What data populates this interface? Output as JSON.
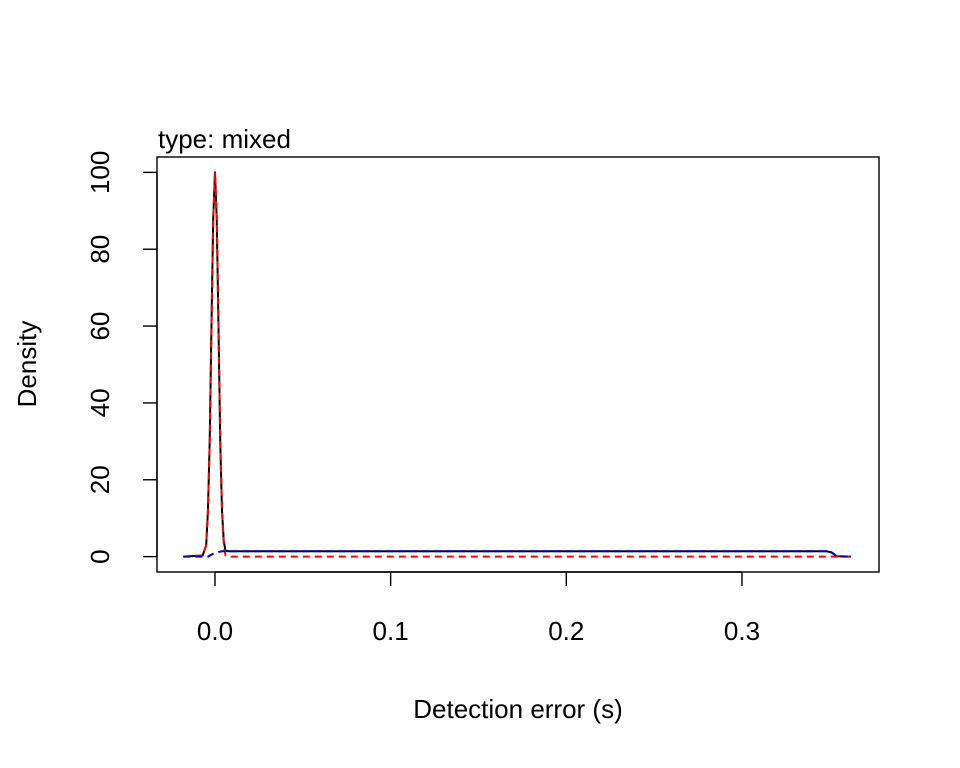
{
  "chart_data": {
    "type": "line",
    "title": "type: mixed",
    "xlabel": "Detection error (s)",
    "ylabel": "Density",
    "xlim": [
      -0.033,
      0.378
    ],
    "ylim": [
      -4,
      104
    ],
    "x_ticks": [
      0.0,
      0.1,
      0.2,
      0.3
    ],
    "x_tick_labels": [
      "0.0",
      "0.1",
      "0.2",
      "0.3"
    ],
    "y_ticks": [
      0,
      20,
      40,
      60,
      80,
      100
    ],
    "y_tick_labels": [
      "0",
      "20",
      "40",
      "60",
      "80",
      "100"
    ],
    "grid": false,
    "legend": false,
    "series": [
      {
        "color": "#000000",
        "line_style": "solid",
        "x": [
          -0.018,
          -0.007,
          -0.005,
          -0.004,
          -0.003,
          -0.002,
          -0.001,
          0.0,
          0.001,
          0.002,
          0.003,
          0.004,
          0.005,
          0.006,
          0.008,
          0.05,
          0.1,
          0.15,
          0.2,
          0.25,
          0.3,
          0.348,
          0.351,
          0.354,
          0.362
        ],
        "y": [
          0,
          0.3,
          3,
          12,
          30,
          60,
          88,
          100,
          88,
          60,
          30,
          12,
          4,
          1.5,
          1.4,
          1.4,
          1.4,
          1.4,
          1.4,
          1.4,
          1.4,
          1.4,
          1.1,
          0.1,
          0
        ]
      },
      {
        "color": "#ff0000",
        "line_style": "dashed",
        "x": [
          -0.018,
          -0.007,
          -0.005,
          -0.004,
          -0.003,
          -0.002,
          -0.001,
          0.0,
          0.001,
          0.002,
          0.003,
          0.004,
          0.005,
          0.006,
          0.008,
          0.1,
          0.2,
          0.3,
          0.362
        ],
        "y": [
          0,
          0.3,
          3,
          12,
          30,
          60,
          88,
          100,
          88,
          60,
          30,
          12,
          3,
          0.3,
          0,
          0,
          0,
          0,
          0
        ]
      },
      {
        "color": "#0000cd",
        "line_style": "dashed",
        "x": [
          -0.018,
          -0.004,
          0.0,
          0.004,
          0.05,
          0.1,
          0.15,
          0.2,
          0.25,
          0.3,
          0.348,
          0.351,
          0.354,
          0.362
        ],
        "y": [
          0,
          0,
          1.0,
          1.4,
          1.4,
          1.4,
          1.4,
          1.4,
          1.4,
          1.4,
          1.4,
          1.1,
          0.1,
          0
        ]
      }
    ]
  }
}
